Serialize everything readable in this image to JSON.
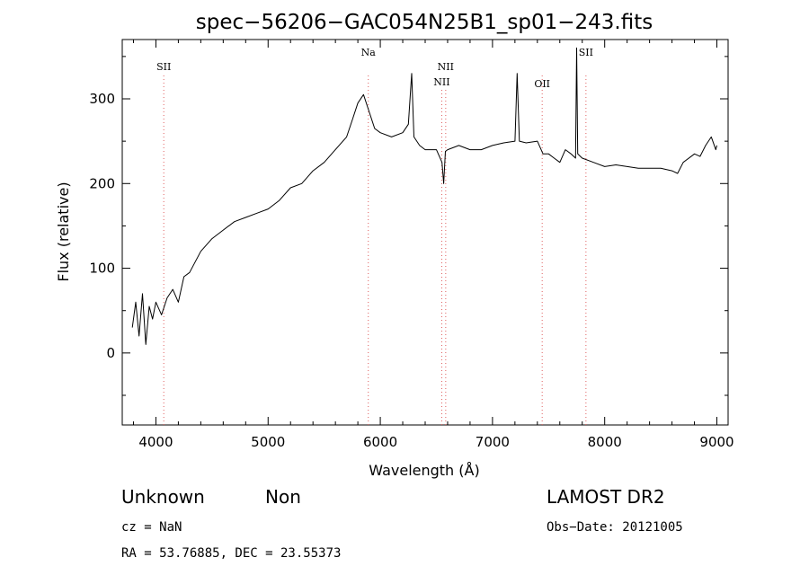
{
  "chart_data": {
    "type": "line",
    "title": "spec−56206−GAC054N25B1_sp01−243.fits",
    "xlabel": "Wavelength (Å)",
    "ylabel": "Flux (relative)",
    "xlim": [
      3700,
      9100
    ],
    "ylim": [
      -85,
      370
    ],
    "xticks": [
      4000,
      5000,
      6000,
      7000,
      8000,
      9000
    ],
    "yticks": [
      0,
      100,
      200,
      300
    ],
    "grid": false,
    "legend": "none",
    "line_color": "#000000",
    "marker_color": "#e06060",
    "series": [
      {
        "x": [
          3790,
          3820,
          3850,
          3880,
          3910,
          3940,
          3970,
          4000,
          4050,
          4100,
          4150,
          4200,
          4250,
          4300,
          4400,
          4500,
          4600,
          4700,
          4800,
          4900,
          5000,
          5100,
          5200,
          5300,
          5400,
          5500,
          5600,
          5700,
          5750,
          5800,
          5850,
          5900,
          5950,
          6000,
          6100,
          6200,
          6250,
          6280,
          6300,
          6350,
          6400,
          6500,
          6550,
          6565,
          6580,
          6600,
          6700,
          6800,
          6900,
          7000,
          7100,
          7200,
          7220,
          7240,
          7300,
          7400,
          7450,
          7500,
          7550,
          7600,
          7650,
          7700,
          7740,
          7750,
          7760,
          7800,
          7900,
          8000,
          8100,
          8200,
          8300,
          8400,
          8500,
          8600,
          8650,
          8700,
          8800,
          8850,
          8900,
          8950,
          8990,
          9000
        ],
        "y": [
          30,
          60,
          20,
          70,
          10,
          55,
          40,
          60,
          45,
          65,
          75,
          60,
          90,
          95,
          120,
          135,
          145,
          155,
          160,
          165,
          170,
          180,
          195,
          200,
          215,
          225,
          240,
          255,
          275,
          295,
          305,
          285,
          265,
          260,
          255,
          260,
          270,
          330,
          255,
          245,
          240,
          240,
          225,
          200,
          238,
          240,
          245,
          240,
          240,
          245,
          248,
          250,
          330,
          250,
          248,
          250,
          235,
          235,
          230,
          225,
          240,
          235,
          230,
          360,
          235,
          230,
          225,
          220,
          222,
          220,
          218,
          218,
          218,
          215,
          212,
          225,
          235,
          232,
          245,
          255,
          240,
          245
        ]
      }
    ],
    "lines": [
      {
        "label": "SII",
        "x": 4070
      },
      {
        "label": "Na",
        "x": 5893
      },
      {
        "label": "NII",
        "x": 6583
      },
      {
        "label": "NII",
        "x": 6548
      },
      {
        "label": "OII",
        "x": 7443
      },
      {
        "label": "SII",
        "x": 7833
      }
    ]
  },
  "info": {
    "class": "Unknown",
    "subclass": "Non",
    "survey": "LAMOST DR2",
    "cz": "cz = NaN",
    "obs_date": "Obs−Date: 20121005",
    "coords": "RA =  53.76885, DEC =  23.55373"
  }
}
